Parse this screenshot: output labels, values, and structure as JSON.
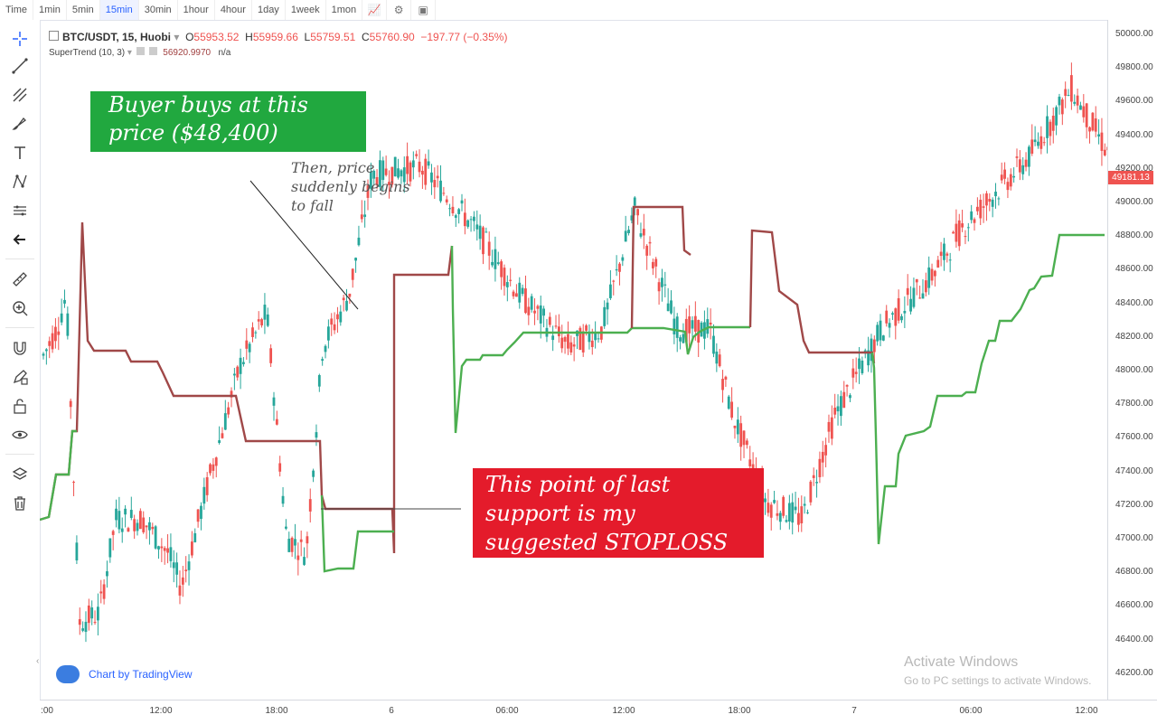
{
  "timeframes": [
    "Time",
    "1min",
    "5min",
    "15min",
    "30min",
    "1hour",
    "4hour",
    "1day",
    "1week",
    "1mon"
  ],
  "active_timeframe": "15min",
  "toolbar_icons": [
    "chart-style-icon",
    "settings-icon",
    "screenshot-icon"
  ],
  "left_tools": [
    "crosshair-icon",
    "trendline-icon",
    "fib-icon",
    "brush-icon",
    "text-icon",
    "pattern-icon",
    "measure-ruler-icon",
    "back-arrow-icon",
    "ruler-icon",
    "zoom-in-icon",
    "magnet-icon",
    "lock-drawing-icon",
    "unlock-icon",
    "eye-icon",
    "layers-icon",
    "trash-icon"
  ],
  "legend": {
    "symbol": "BTC/USDT, 15, Huobi",
    "o_label": "O",
    "o": "55953.52",
    "h_label": "H",
    "h": "55959.66",
    "l_label": "L",
    "l": "55759.51",
    "c_label": "C",
    "c": "55760.90",
    "change": "−197.77 (−0.35%)",
    "indicator": "SuperTrend (10, 3)",
    "indicator_value": "56920.9970",
    "indicator_na": "n/a"
  },
  "y_axis_labels": [
    "50000.00",
    "49800.00",
    "49600.00",
    "49400.00",
    "49200.00",
    "49000.00",
    "48800.00",
    "48600.00",
    "48400.00",
    "48200.00",
    "48000.00",
    "47800.00",
    "47600.00",
    "47400.00",
    "47200.00",
    "47000.00",
    "46800.00",
    "46600.00",
    "46400.00",
    "46200.00"
  ],
  "last_price": "49181.13",
  "x_axis_labels": [
    ":00",
    "12:00",
    "18:00",
    "6",
    "06:00",
    "12:00",
    "18:00",
    "7",
    "06:00",
    "12:00"
  ],
  "annotations": {
    "buyer_line1": "Buyer buys at this",
    "buyer_line2": "price ($48,400)",
    "fall_line1": "Then, price",
    "fall_line2": "suddenly begins",
    "fall_line3": "to fall",
    "stop_line1": "This point of last",
    "stop_line2": "support is my",
    "stop_line3": "suggested STOPLOSS"
  },
  "brand": "Chart by TradingView",
  "watermark_title": "Activate Windows",
  "watermark_sub": "Go to PC settings to activate Windows.",
  "colors": {
    "up": "#26a69a",
    "down": "#ef5350",
    "supertrend_up": "#4caf50",
    "supertrend_down": "#a04848",
    "accent": "#2962ff"
  },
  "chart_data": {
    "type": "candlestick",
    "ylim": [
      46150,
      50100
    ],
    "supertrend_down": [
      [
        0,
        48900
      ],
      [
        8,
        48900
      ],
      [
        9,
        48150
      ],
      [
        24,
        48150
      ],
      [
        26,
        48100
      ],
      [
        34,
        48100
      ],
      [
        36,
        48000
      ],
      [
        38,
        47900
      ],
      [
        50,
        47900
      ],
      [
        57,
        47600
      ],
      [
        76,
        47600
      ],
      [
        77,
        48600
      ],
      [
        97,
        48600
      ],
      [
        98,
        48350
      ],
      [
        116,
        48350
      ],
      [
        158,
        48350
      ],
      [
        162,
        49000
      ],
      [
        176,
        49000
      ],
      [
        193,
        49000
      ],
      [
        194,
        48650
      ],
      [
        195,
        48350
      ],
      [
        196,
        48150
      ],
      [
        198,
        48100
      ],
      [
        204,
        48100
      ],
      [
        210,
        48200
      ],
      [
        226,
        48200
      ],
      [
        231,
        48500
      ],
      [
        235,
        48500
      ],
      [
        237,
        48350
      ],
      [
        243,
        48350
      ],
      [
        245,
        48150
      ],
      [
        266,
        48150
      ],
      [
        271,
        48100
      ],
      [
        281,
        48100
      ],
      [
        293,
        48100
      ],
      [
        296,
        48100
      ],
      [
        299,
        48150
      ],
      [
        318,
        48150
      ],
      [
        323,
        48350
      ],
      [
        325,
        48500
      ],
      [
        326,
        48500
      ],
      [
        329,
        48800
      ],
      [
        340,
        48800
      ],
      [
        341,
        48400
      ],
      [
        347,
        48400
      ],
      [
        351,
        48150
      ],
      [
        366,
        48150
      ]
    ],
    "supertrend_up": [
      [
        0,
        47300
      ],
      [
        4,
        47350
      ],
      [
        6,
        47500
      ],
      [
        10,
        47500
      ],
      [
        12,
        47850
      ],
      [
        14,
        47850
      ],
      [
        15,
        47850
      ],
      [
        16,
        47850
      ],
      [
        17,
        47850
      ],
      [
        20,
        47850
      ]
    ]
  }
}
